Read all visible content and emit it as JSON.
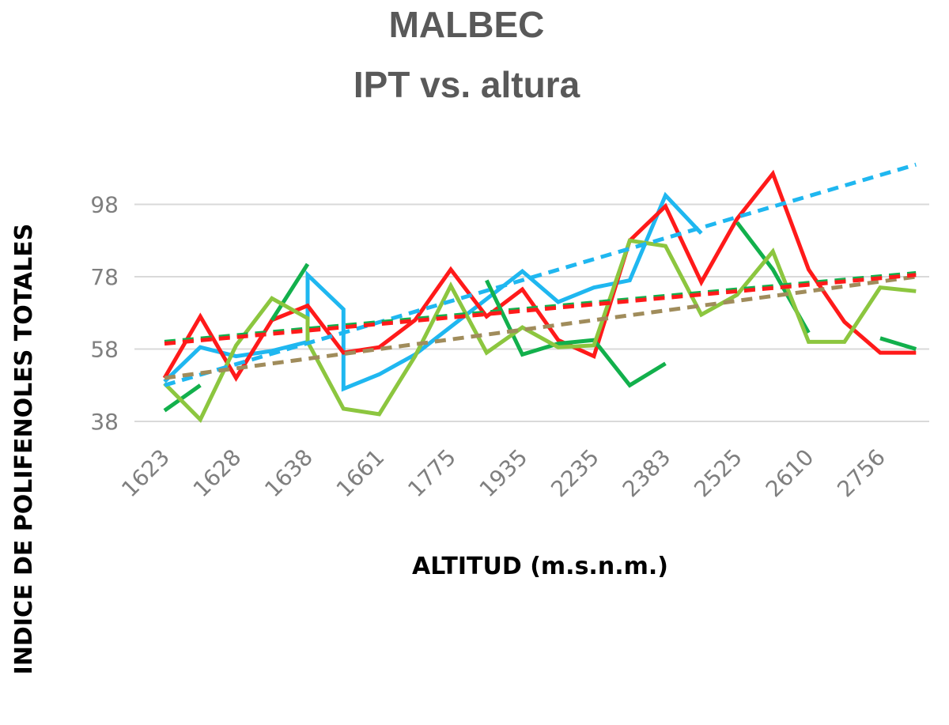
{
  "chart_data": {
    "type": "line",
    "title": "MALBEC",
    "subtitle": "IPT vs. altura",
    "xlabel": "ALTITUD (m.s.n.m.)",
    "ylabel": "INDICE DE  POLIFENOLES TOTALES",
    "categories": [
      "1623",
      "1628",
      "1638",
      "1661",
      "1775",
      "1935",
      "2235",
      "2383",
      "2525",
      "2610",
      "2756"
    ],
    "y_ticks": [
      38,
      58,
      78,
      98
    ],
    "ylim": [
      34,
      112
    ],
    "grid": true,
    "legend": "none",
    "colors": {
      "blue": "#1FB7F0",
      "red": "#FF1A1A",
      "darkgreen": "#12B04C",
      "lightgreen": "#8CC63F",
      "olive_trend": "#A08C5B"
    },
    "series": [
      {
        "color": "#1FB7F0",
        "kind": "line",
        "points": [
          [
            0,
            49
          ],
          [
            0.5,
            58.5
          ],
          [
            1,
            56
          ],
          [
            1.5,
            57.5
          ],
          [
            2,
            60
          ],
          [
            2,
            78.5
          ],
          [
            2.5,
            69
          ],
          [
            2.5,
            47
          ],
          [
            3,
            51
          ],
          [
            3.5,
            56.5
          ],
          [
            5,
            79.5
          ],
          [
            5.5,
            71
          ],
          [
            6,
            75
          ],
          [
            6.5,
            77
          ],
          [
            7,
            100.5
          ],
          [
            7.5,
            90
          ]
        ]
      },
      {
        "color": "#FF1A1A",
        "kind": "line",
        "points": [
          [
            0,
            50
          ],
          [
            0.5,
            67
          ],
          [
            1,
            50
          ],
          [
            1.5,
            66
          ],
          [
            2,
            70
          ],
          [
            2.5,
            57
          ],
          [
            3,
            58.5
          ],
          [
            3.5,
            66
          ],
          [
            4,
            80
          ],
          [
            4.5,
            67
          ],
          [
            5,
            74.5
          ],
          [
            5.5,
            60.5
          ],
          [
            6,
            56
          ],
          [
            6.5,
            88
          ],
          [
            7,
            97.5
          ],
          [
            7.5,
            76.5
          ],
          [
            8,
            94
          ],
          [
            8.5,
            106.5
          ],
          [
            9,
            80
          ],
          [
            9.5,
            65.5
          ],
          [
            10,
            57
          ],
          [
            10.5,
            57
          ]
        ]
      },
      {
        "color": "#12B04C",
        "kind": "line",
        "points": [
          [
            0,
            41
          ],
          [
            0.5,
            48
          ],
          null,
          [
            1.5,
            66
          ],
          [
            2,
            81.5
          ],
          null,
          [
            4.5,
            77
          ],
          [
            5,
            56.5
          ],
          [
            5.5,
            59.5
          ],
          [
            6,
            60.5
          ],
          [
            6.5,
            48
          ],
          [
            7,
            54
          ],
          null,
          [
            8,
            93
          ],
          [
            8.5,
            80
          ],
          [
            9,
            62.5
          ],
          null,
          [
            10,
            61
          ],
          [
            10.5,
            58
          ]
        ]
      },
      {
        "color": "#8CC63F",
        "kind": "line",
        "points": [
          [
            0,
            48.5
          ],
          [
            0.5,
            38.5
          ],
          [
            1,
            59
          ],
          [
            1.5,
            72
          ],
          [
            2,
            66.5
          ],
          [
            2,
            60
          ],
          [
            2.5,
            41.5
          ],
          [
            3,
            40
          ],
          [
            3.5,
            56
          ],
          [
            4,
            75.5
          ],
          [
            4.5,
            57
          ],
          [
            5,
            64
          ],
          [
            5.5,
            58.5
          ],
          [
            6,
            59
          ],
          [
            6.5,
            88
          ],
          [
            7,
            86.5
          ],
          [
            7.5,
            67.5
          ],
          [
            8,
            73
          ],
          [
            8.5,
            85
          ],
          [
            9,
            60
          ],
          [
            9.5,
            60
          ],
          [
            10,
            75
          ],
          [
            10.5,
            74
          ]
        ]
      }
    ],
    "trendlines": [
      {
        "color": "#1FB7F0",
        "from": [
          0,
          48
        ],
        "to": [
          10.5,
          109
        ]
      },
      {
        "color": "#A08C5B",
        "from": [
          0,
          50
        ],
        "to": [
          10.5,
          78
        ]
      },
      {
        "color": "#12B04C",
        "from": [
          0,
          60
        ],
        "to": [
          10.5,
          79
        ]
      },
      {
        "color": "#FF1A1A",
        "from": [
          0,
          59.5
        ],
        "to": [
          10.5,
          78.5
        ]
      }
    ]
  }
}
